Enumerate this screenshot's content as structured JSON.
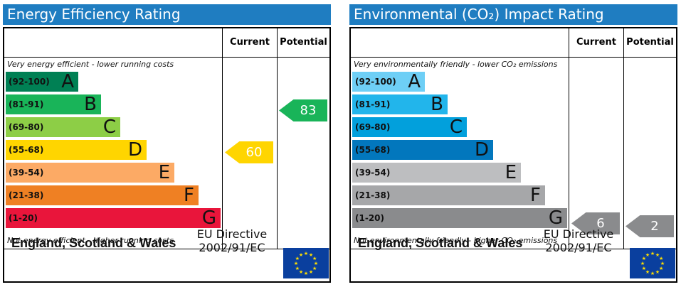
{
  "energy": {
    "title": "Energy Efficiency Rating",
    "col_current": "Current",
    "col_potential": "Potential",
    "top_note": "Very energy efficient - lower running costs",
    "bottom_note": "Not energy efficient - higher running costs",
    "bands": [
      {
        "range": "(92-100)",
        "letter": "A",
        "color": "#008054"
      },
      {
        "range": "(81-91)",
        "letter": "B",
        "color": "#19b459"
      },
      {
        "range": "(69-80)",
        "letter": "C",
        "color": "#8dce46"
      },
      {
        "range": "(55-68)",
        "letter": "D",
        "color": "#ffd500"
      },
      {
        "range": "(39-54)",
        "letter": "E",
        "color": "#fcaa65"
      },
      {
        "range": "(21-38)",
        "letter": "F",
        "color": "#ef8023"
      },
      {
        "range": "(1-20)",
        "letter": "G",
        "color": "#e9153b"
      }
    ],
    "current": {
      "value": "60",
      "color": "#ffd500"
    },
    "potential": {
      "value": "83",
      "color": "#19b459"
    },
    "footer_region": "England, Scotland & Wales",
    "footer_directive_line1": "EU Directive",
    "footer_directive_line2": "2002/91/EC"
  },
  "environment": {
    "title": "Environmental (CO₂) Impact Rating",
    "col_current": "Current",
    "col_potential": "Potential",
    "top_note": "Very environmentally friendly - lower CO₂ emissions",
    "bottom_note": "Not environmentally friendly - higher CO₂ emissions",
    "bands": [
      {
        "range": "(92-100)",
        "letter": "A",
        "color": "#6ecff6"
      },
      {
        "range": "(81-91)",
        "letter": "B",
        "color": "#22b5eb"
      },
      {
        "range": "(69-80)",
        "letter": "C",
        "color": "#02a0dc"
      },
      {
        "range": "(55-68)",
        "letter": "D",
        "color": "#0277bd"
      },
      {
        "range": "(39-54)",
        "letter": "E",
        "color": "#bdbec0"
      },
      {
        "range": "(21-38)",
        "letter": "F",
        "color": "#a6a7a9"
      },
      {
        "range": "(1-20)",
        "letter": "G",
        "color": "#8a8b8d"
      }
    ],
    "current": {
      "value": "6",
      "color": "#8a8b8d"
    },
    "potential": {
      "value": "2",
      "color": "#8a8b8d"
    },
    "footer_region": "England, Scotland & Wales",
    "footer_directive_line1": "EU Directive",
    "footer_directive_line2": "2002/91/EC"
  }
}
